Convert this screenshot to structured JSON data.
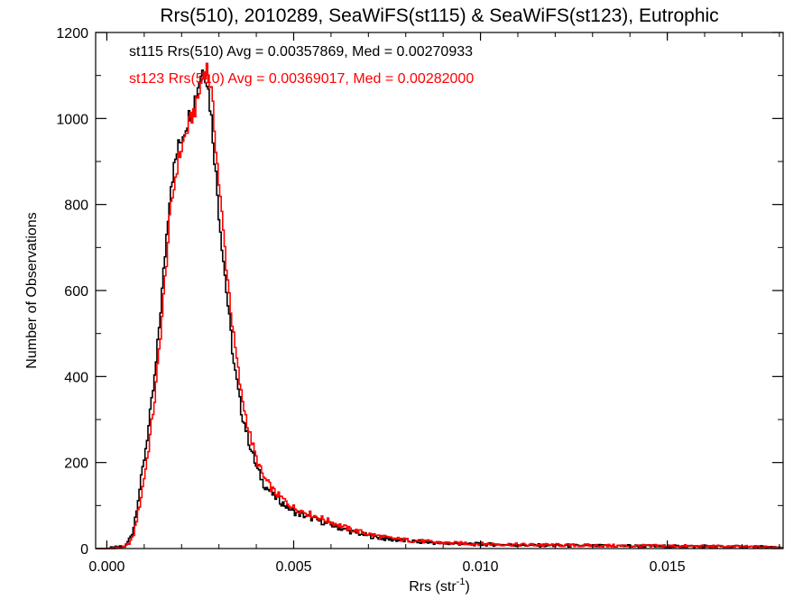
{
  "chart_data": {
    "type": "line",
    "title": "Rrs(510), 2010289, SeaWiFS(st115) & SeaWiFS(st123), Eutrophic",
    "xlabel": "Rrs (str",
    "xlabel_sup": "-1",
    "xlabel_close": ")",
    "ylabel": "Number of Observations",
    "xlim": [
      -0.0003,
      0.0181
    ],
    "ylim": [
      0,
      1200
    ],
    "xticks": [
      {
        "value": 0.0,
        "label": "0.000"
      },
      {
        "value": 0.005,
        "label": "0.005"
      },
      {
        "value": 0.01,
        "label": "0.010"
      },
      {
        "value": 0.015,
        "label": "0.015"
      }
    ],
    "yticks": [
      {
        "value": 0,
        "label": "0"
      },
      {
        "value": 200,
        "label": "200"
      },
      {
        "value": 400,
        "label": "400"
      },
      {
        "value": 600,
        "label": "600"
      },
      {
        "value": 800,
        "label": "800"
      },
      {
        "value": 1000,
        "label": "1000"
      },
      {
        "value": 1200,
        "label": "1200"
      }
    ],
    "grid": false,
    "series": [
      {
        "id": "st115",
        "color": "#000000",
        "annotation": "st115 Rrs(510) Avg = 0.00357869, Med = 0.00270933",
        "x": [
          -0.0003,
          0.0,
          0.0005,
          0.0007,
          0.0009,
          0.0011,
          0.0013,
          0.0015,
          0.0017,
          0.0019,
          0.0021,
          0.0023,
          0.0024,
          0.0025,
          0.0026,
          0.0027,
          0.0028,
          0.0029,
          0.003,
          0.0032,
          0.0034,
          0.0036,
          0.0038,
          0.004,
          0.0042,
          0.0045,
          0.005,
          0.0055,
          0.006,
          0.0065,
          0.007,
          0.0075,
          0.008,
          0.009,
          0.01,
          0.011,
          0.012,
          0.013,
          0.014,
          0.015,
          0.016,
          0.017,
          0.018
        ],
        "y": [
          0,
          0,
          5,
          40,
          150,
          270,
          410,
          620,
          840,
          930,
          980,
          1030,
          1060,
          1100,
          1120,
          1080,
          1000,
          890,
          780,
          600,
          430,
          320,
          250,
          190,
          150,
          120,
          85,
          70,
          55,
          40,
          30,
          22,
          18,
          12,
          10,
          8,
          7,
          6,
          6,
          5,
          5,
          4,
          3
        ]
      },
      {
        "id": "st123",
        "color": "#ff0000",
        "annotation": "st123 Rrs(510) Avg = 0.00369017, Med = 0.00282000",
        "x": [
          -0.0003,
          0.0,
          0.0005,
          0.0007,
          0.0009,
          0.0011,
          0.0013,
          0.0015,
          0.0017,
          0.0019,
          0.0021,
          0.0023,
          0.0024,
          0.0025,
          0.0026,
          0.0027,
          0.0028,
          0.0029,
          0.003,
          0.0032,
          0.0034,
          0.0036,
          0.0038,
          0.004,
          0.0042,
          0.0045,
          0.005,
          0.0055,
          0.006,
          0.0065,
          0.007,
          0.0075,
          0.008,
          0.009,
          0.01,
          0.011,
          0.012,
          0.013,
          0.014,
          0.015,
          0.016,
          0.017,
          0.018
        ],
        "y": [
          0,
          0,
          3,
          25,
          110,
          220,
          360,
          560,
          780,
          900,
          960,
          1010,
          1030,
          1070,
          1110,
          1120,
          1060,
          960,
          850,
          660,
          490,
          360,
          275,
          210,
          165,
          130,
          95,
          78,
          62,
          45,
          34,
          25,
          20,
          13,
          11,
          9,
          8,
          7,
          6,
          6,
          5,
          4,
          3
        ]
      }
    ]
  }
}
